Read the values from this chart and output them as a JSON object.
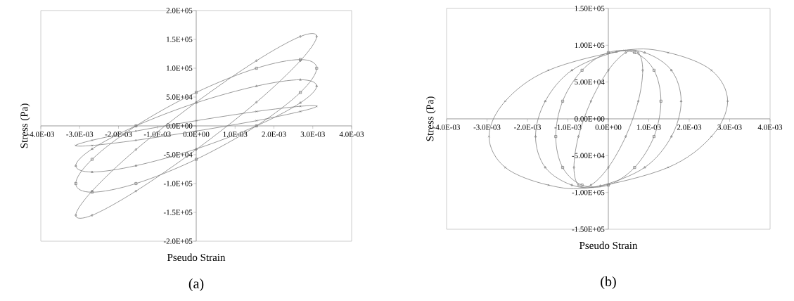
{
  "chart_data": [
    {
      "type": "scatter",
      "line_style": "solid",
      "xlabel": "Pseudo Strain",
      "ylabel": "Stress (Pa)",
      "annotations": [
        "(a)"
      ],
      "xlim": [
        -0.004,
        0.004
      ],
      "ylim": [
        -200000,
        200000
      ],
      "xticks": [
        {
          "value": -0.004,
          "label": "-4.0E-03"
        },
        {
          "value": -0.003,
          "label": "-3.0E-03"
        },
        {
          "value": -0.002,
          "label": "-2.0E-03"
        },
        {
          "value": -0.001,
          "label": "-1.0E-03"
        },
        {
          "value": 0,
          "label": "0.0E+00"
        },
        {
          "value": 0.001,
          "label": "1.0E-03"
        },
        {
          "value": 0.002,
          "label": "2.0E-03"
        },
        {
          "value": 0.003,
          "label": "3.0E-03"
        },
        {
          "value": 0.004,
          "label": "4.0E-03"
        }
      ],
      "yticks": [
        {
          "value": -200000,
          "label": "-2.0E+05"
        },
        {
          "value": -150000,
          "label": "-1.5E+05"
        },
        {
          "value": -100000,
          "label": "-1.0E+05"
        },
        {
          "value": -50000,
          "label": "-5.0E+04"
        },
        {
          "value": 0,
          "label": "0.0E+00"
        },
        {
          "value": 50000,
          "label": "5.0E+04"
        },
        {
          "value": 100000,
          "label": "1.0E+05"
        },
        {
          "value": 150000,
          "label": "1.5E+05"
        },
        {
          "value": 200000,
          "label": "2.0E+05"
        }
      ],
      "series": [
        {
          "color": "#808080",
          "marker": "diamond",
          "x": [
            0.0031,
            0.00268,
            0.00155,
            0,
            -0.00155,
            -0.00268,
            -0.0031,
            -0.00268,
            -0.00155,
            0,
            0.00155,
            0.00268
          ],
          "values": [
            155000,
            155000,
            113000,
            41000,
            -41000,
            -113000,
            -155000,
            -155000,
            -113000,
            -41000,
            41000,
            113000
          ]
        },
        {
          "color": "#808080",
          "marker": "square",
          "x": [
            0.0031,
            0.00268,
            0.00155,
            0,
            -0.00155,
            -0.00268,
            -0.0031,
            -0.00268,
            -0.00155,
            0,
            0.00155,
            0.00268
          ],
          "values": [
            100000,
            115000,
            100000,
            58000,
            0,
            -58000,
            -100000,
            -115000,
            -100000,
            -58000,
            0,
            58000
          ]
        },
        {
          "color": "#808080",
          "marker": "triangle",
          "x": [
            0.0031,
            0.00268,
            0.00155,
            0,
            -0.00155,
            -0.00268,
            -0.0031,
            -0.00268,
            -0.00155,
            0,
            0.00155,
            0.00268
          ],
          "values": [
            69000,
            80000,
            69000,
            40000,
            0,
            -40000,
            -69000,
            -80000,
            -69000,
            -40000,
            0,
            40000
          ]
        },
        {
          "color": "#808080",
          "marker": "cross",
          "x": [
            0.0031,
            0.00268,
            0.00155,
            0,
            -0.00155,
            -0.00268,
            -0.0031,
            -0.00268,
            -0.00155,
            0,
            0.00155,
            0.00268
          ],
          "values": [
            34000,
            34000,
            25000,
            9000,
            -9000,
            -25000,
            -34000,
            -34000,
            -25000,
            -9000,
            9000,
            25000
          ]
        }
      ]
    },
    {
      "type": "scatter",
      "line_style": "solid",
      "xlabel": "Pseudo Strain",
      "ylabel": "Stress (Pa)",
      "annotations": [
        "(b)"
      ],
      "xlim": [
        -0.004,
        0.004
      ],
      "ylim": [
        -150000,
        150000
      ],
      "xticks": [
        {
          "value": -0.004,
          "label": "-4.0E-03"
        },
        {
          "value": -0.003,
          "label": "-3.0E-03"
        },
        {
          "value": -0.002,
          "label": "-2.0E-03"
        },
        {
          "value": -0.001,
          "label": "-1.0E-03"
        },
        {
          "value": 0,
          "label": "0.0E+00"
        },
        {
          "value": 0.001,
          "label": "1.0E-03"
        },
        {
          "value": 0.002,
          "label": "2.0E-03"
        },
        {
          "value": 0.003,
          "label": "3.0E-03"
        },
        {
          "value": 0.004,
          "label": "4.0E-03"
        }
      ],
      "yticks": [
        {
          "value": -150000,
          "label": "-1.50E+05"
        },
        {
          "value": -100000,
          "label": "-1.00E+05"
        },
        {
          "value": -50000,
          "label": "-5.00E+04"
        },
        {
          "value": 0,
          "label": "0.00E+00"
        },
        {
          "value": 50000,
          "label": "5.00E+04"
        },
        {
          "value": 100000,
          "label": "1.00E+05"
        },
        {
          "value": 150000,
          "label": "1.50E+05"
        }
      ],
      "series": [
        {
          "color": "#808080",
          "marker": "cross",
          "x": [
            0.00295,
            0.00255,
            0.00148,
            0.0004,
            -0.00148,
            -0.00255,
            -0.00295,
            -0.00255,
            -0.00148,
            -0.0004,
            0.00148,
            0.00255
          ],
          "values": [
            24000,
            66000,
            90000,
            93000,
            66000,
            24000,
            -24000,
            -66000,
            -90000,
            -93000,
            -66000,
            -24000
          ]
        },
        {
          "color": "#808080",
          "marker": "triangle",
          "x": [
            0.0018,
            0.00156,
            0.0009,
            0.0002,
            -0.0009,
            -0.00156,
            -0.0018,
            -0.00156,
            -0.0009,
            -0.0002,
            0.0009,
            0.00156
          ],
          "values": [
            24000,
            66000,
            90000,
            91000,
            66000,
            24000,
            -24000,
            -66000,
            -90000,
            -91000,
            -66000,
            -24000
          ]
        },
        {
          "color": "#808080",
          "marker": "square",
          "x": [
            0.0013,
            0.00113,
            0.00065,
            0,
            -0.00065,
            -0.00113,
            -0.0013,
            -0.00113,
            -0.00065,
            0,
            0.00065,
            0.00113
          ],
          "values": [
            24000,
            66000,
            90000,
            90000,
            66000,
            24000,
            -24000,
            -66000,
            -90000,
            -90000,
            -66000,
            -24000
          ]
        },
        {
          "color": "#808080",
          "marker": "diamond",
          "x": [
            0.00085,
            0.00074,
            0.00043,
            0,
            -0.00043,
            -0.00074,
            -0.00085,
            -0.00074,
            -0.00043,
            0,
            0.00043,
            0.00074
          ],
          "values": [
            66000,
            90000,
            90000,
            66000,
            24000,
            -24000,
            -66000,
            -90000,
            -90000,
            -66000,
            -24000,
            24000
          ]
        }
      ]
    }
  ]
}
